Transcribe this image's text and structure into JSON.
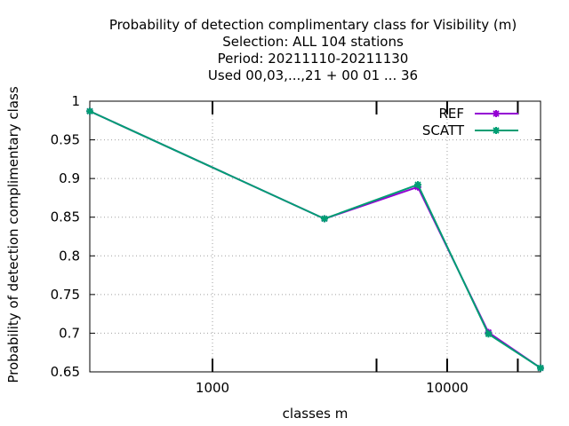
{
  "chart_data": {
    "type": "line",
    "title_lines": [
      "Probability of detection complimentary class  for Visibility (m)",
      "Selection: ALL    104 stations",
      "Period: 20211110-20211130",
      "Used  00,03,...,21  + 00 01 ... 36"
    ],
    "xlabel": "classes m",
    "ylabel": "Probability of detection complimentary class",
    "x_scale": "log",
    "xlim": [
      300,
      25000
    ],
    "ylim": [
      0.65,
      1.0
    ],
    "x_ticks_major": [
      1000,
      10000
    ],
    "x_tick_labels": [
      "1000",
      "10000"
    ],
    "x_ticks_minor": [
      5000,
      20000
    ],
    "y_ticks": [
      0.65,
      0.7,
      0.75,
      0.8,
      0.85,
      0.9,
      0.95,
      1.0
    ],
    "y_tick_labels": [
      "0.65",
      "0.7",
      "0.75",
      "0.8",
      "0.85",
      "0.9",
      "0.95",
      "1"
    ],
    "grid": true,
    "legend_position": "top-right",
    "series": [
      {
        "name": "REF",
        "color": "#9400d3",
        "x": [
          300,
          3000,
          7500,
          15000,
          25000
        ],
        "y": [
          0.987,
          0.848,
          0.889,
          0.701,
          0.655
        ]
      },
      {
        "name": "SCATT",
        "color": "#009e73",
        "x": [
          300,
          3000,
          7500,
          15000,
          25000
        ],
        "y": [
          0.987,
          0.848,
          0.892,
          0.699,
          0.655
        ]
      }
    ]
  }
}
